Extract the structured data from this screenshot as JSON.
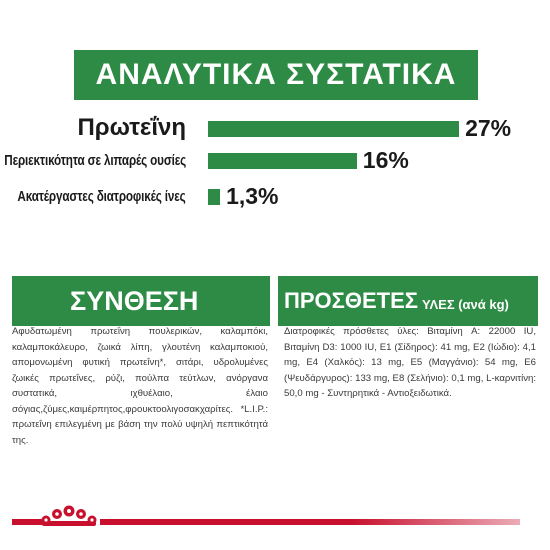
{
  "title": "ΑΝΑΛΥΤΙΚΑ ΣΥΣΤΑΤΙΚΑ",
  "chart_data": {
    "type": "bar",
    "categories": [
      "Πρωτεΐνη",
      "Περιεκτικότητα σε λιπαρές ουσίες",
      "Ακατέργαστες διατροφικές ίνες"
    ],
    "values": [
      27,
      16,
      1.3
    ],
    "value_labels": [
      "27%",
      "16%",
      "1,3%"
    ],
    "unit": "%"
  },
  "composition": {
    "heading": "ΣΥΝΘΕΣΗ",
    "text": "Αφυδατωμένη πρωτεΐνη πουλερικών, καλαμπόκι, καλαμποκάλευρο, ζωικά λίπη, γλουτένη καλαμποκιού, απομονωμένη φυτική πρωτεΐνη*, σιτάρι, υδρολυμένες ζωικές πρωτεΐνες, ρύζι, πούλπα τεύτλων, ανόργανα συστατικά, ιχθυέλαιο, έλαιο σόγιας,ζύμες,καιμέρπητος,φρουκτοολιγοσακχαρίτες. *L.I.P.: πρωτεΐνη επιλεγμένη με βάση την πολύ υψηλή πεπτικότητά της."
  },
  "additives": {
    "heading": "ΠΡΟΣΘΕΤΕΣ",
    "heading_sub": "ΥΛΕΣ (ανά kg)",
    "text": "Διατροφικές πρόσθετες ύλες: Βιταμίνη A: 22000 IU, Βιταμίνη D3: 1000 IU, E1 (Σίδηρος): 41 mg, E2 (Ιώδιο): 4,1 mg, E4 (Χαλκός): 13 mg, E5 (Μαγγάνιο): 54 mg, E6 (Ψευδάργυρος): 133 mg, E8 (Σελήνιο): 0,1 mg, L-καρνιτίνη: 50,0 mg - Συντηρητικά - Αντιοξειδωτικά."
  },
  "colors": {
    "green": "#2e8b45",
    "red": "#c8102e"
  },
  "brand_icon": "royal-canin-crown-icon"
}
